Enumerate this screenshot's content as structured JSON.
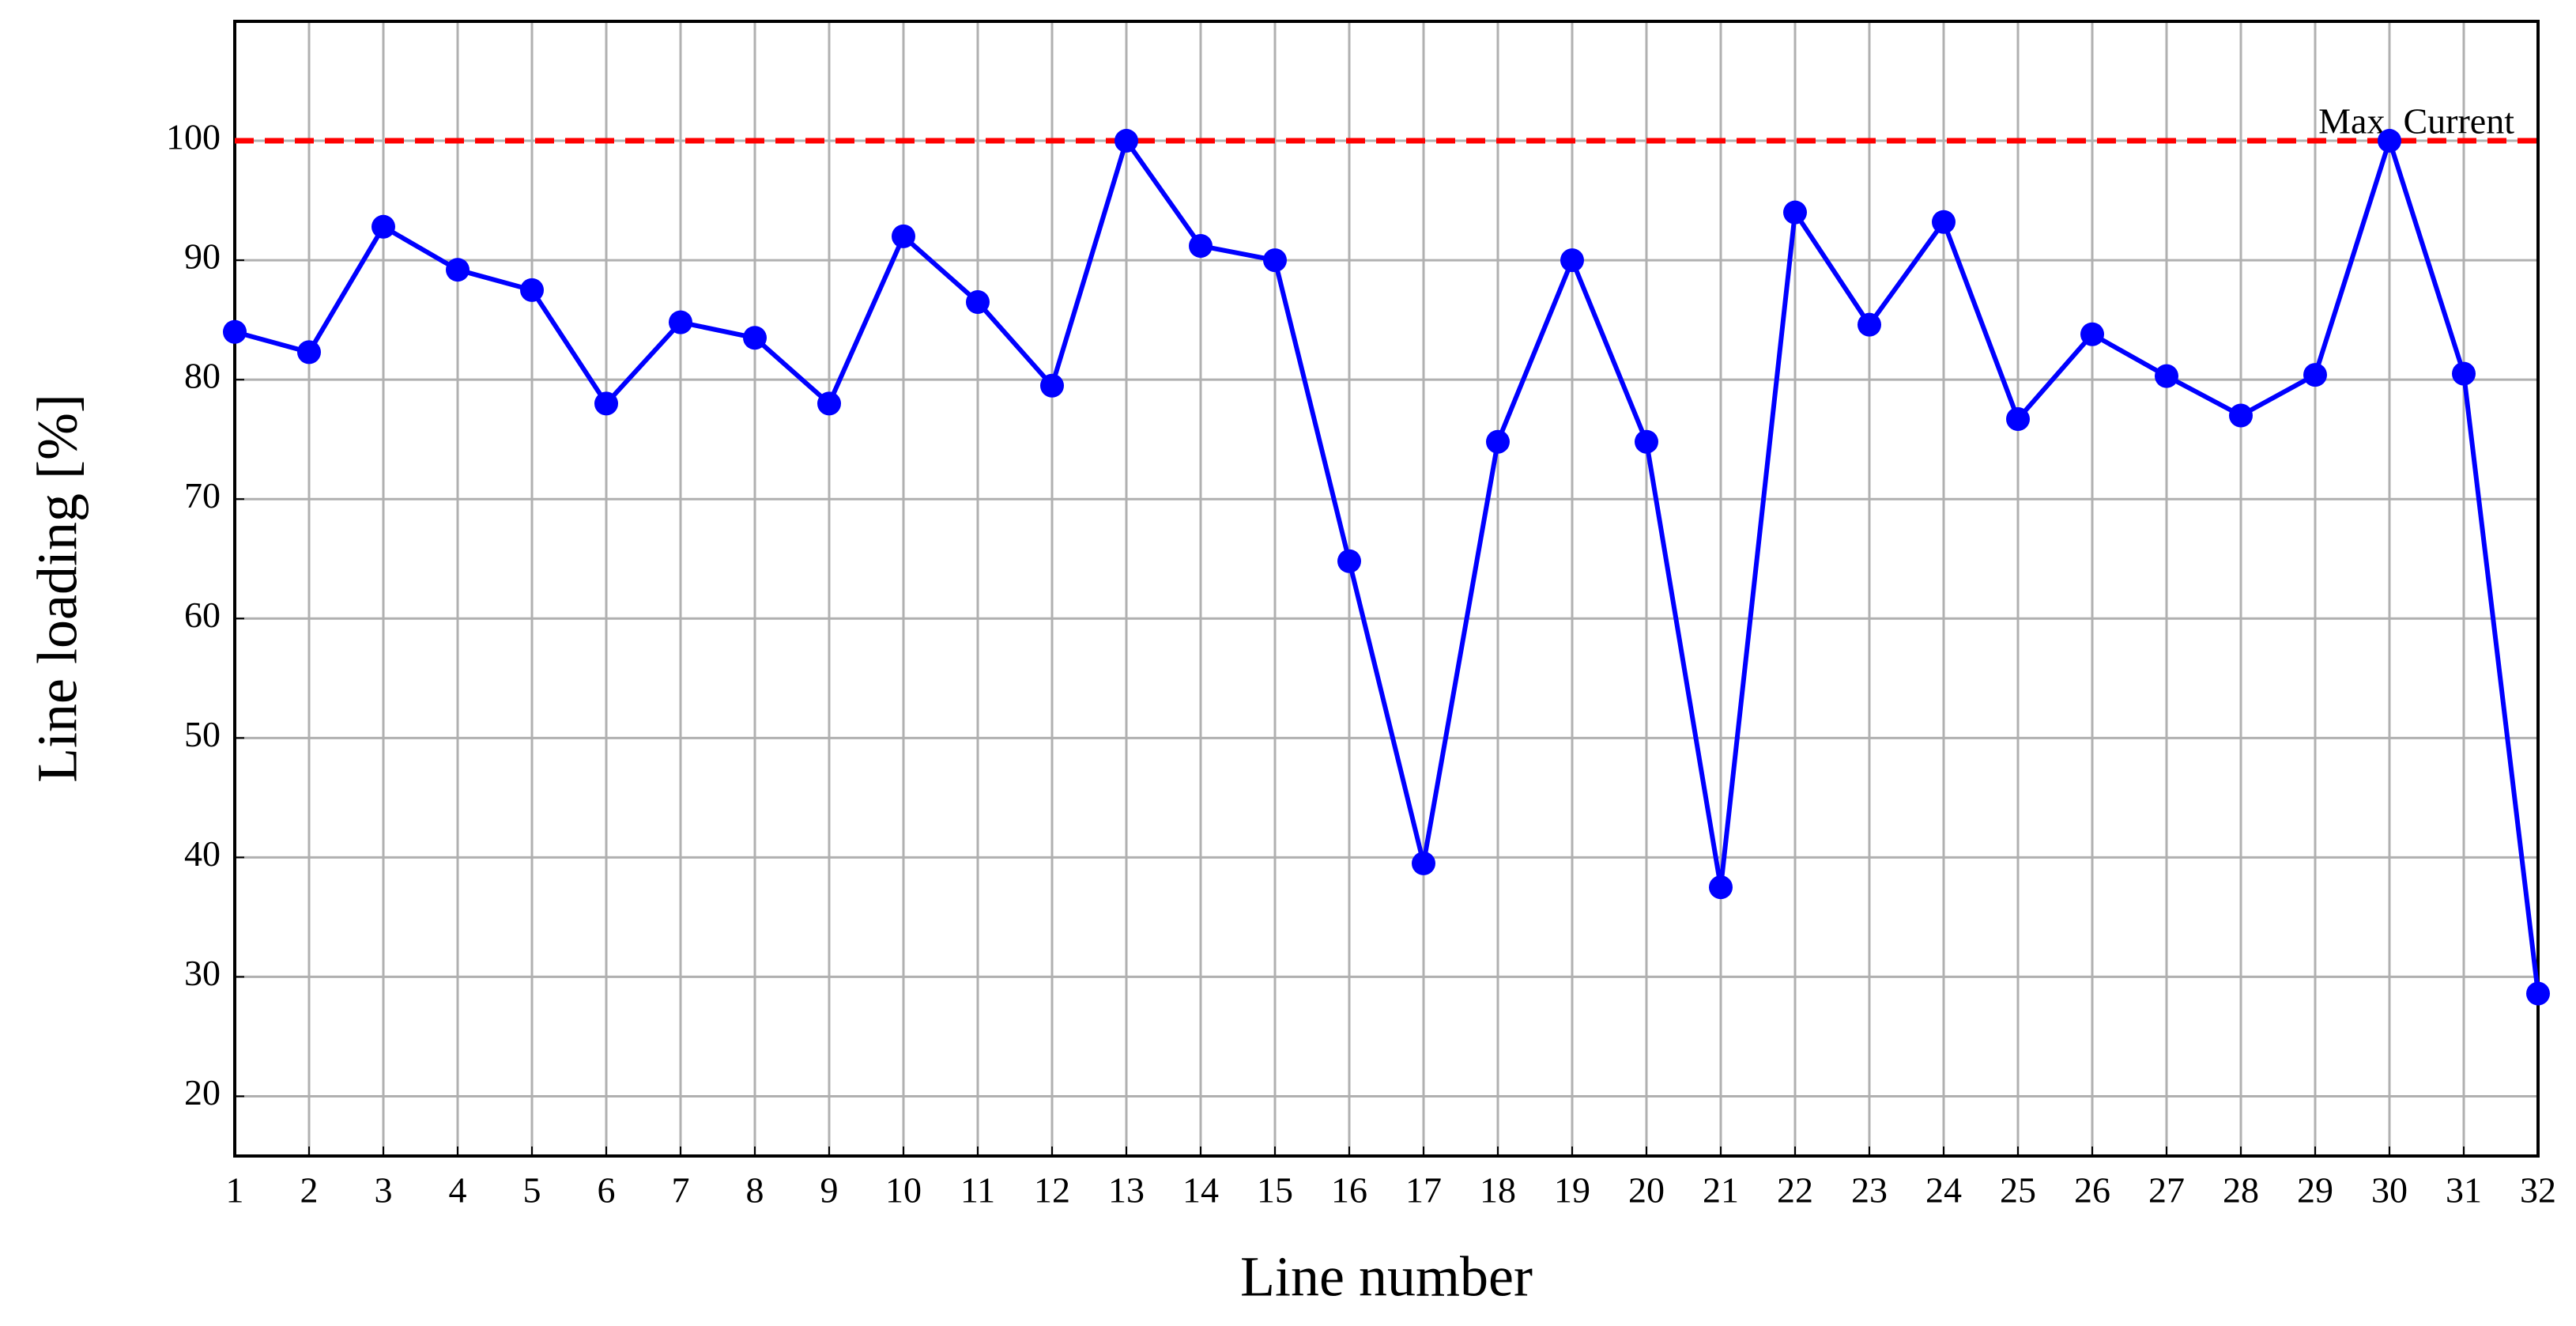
{
  "chart_data": {
    "type": "line",
    "x_label": "Line number",
    "y_label": "Line loading [%]",
    "x": [
      1,
      2,
      3,
      4,
      5,
      6,
      7,
      8,
      9,
      10,
      11,
      12,
      13,
      14,
      15,
      16,
      17,
      18,
      19,
      20,
      21,
      22,
      23,
      24,
      25,
      26,
      27,
      28,
      29,
      30,
      31,
      32
    ],
    "series": [
      {
        "name": "Line loading",
        "color": "#0000ff",
        "values": [
          84,
          82.3,
          92.8,
          89.2,
          87.5,
          78,
          84.8,
          83.5,
          78,
          92,
          86.5,
          79.5,
          100,
          91.2,
          90,
          64.8,
          39.5,
          74.8,
          90,
          74.8,
          37.5,
          94,
          84.6,
          93.2,
          76.7,
          83.8,
          80.3,
          77,
          80.4,
          100,
          80.5,
          28.6
        ]
      }
    ],
    "reference_line": {
      "value": 100,
      "label": "Max. Current",
      "color": "#ff0000"
    },
    "xlim": [
      1,
      32
    ],
    "ylim": [
      15,
      110
    ],
    "xticks": [
      1,
      2,
      3,
      4,
      5,
      6,
      7,
      8,
      9,
      10,
      11,
      12,
      13,
      14,
      15,
      16,
      17,
      18,
      19,
      20,
      21,
      22,
      23,
      24,
      25,
      26,
      27,
      28,
      29,
      30,
      31,
      32
    ],
    "yticks": [
      20,
      30,
      40,
      50,
      60,
      70,
      80,
      90,
      100
    ],
    "grid": true
  }
}
